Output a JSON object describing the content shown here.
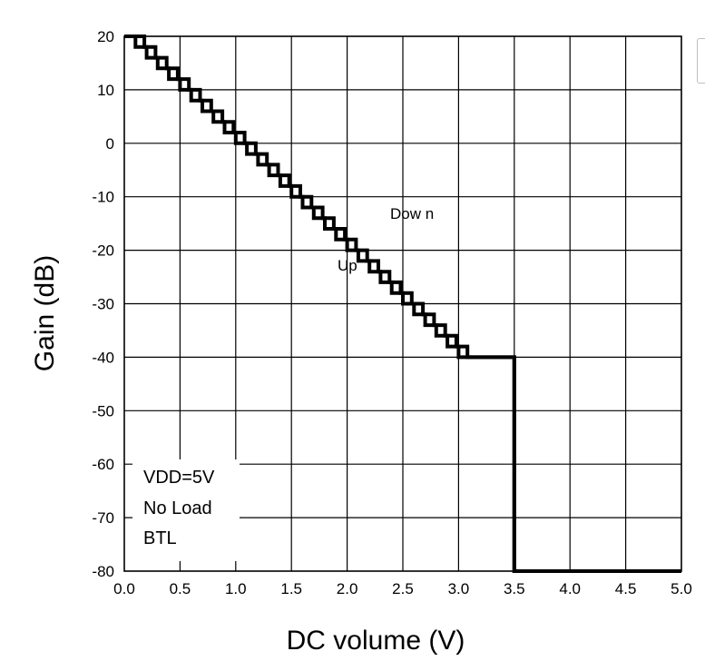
{
  "chart_data": {
    "type": "line",
    "xlabel": "DC volume (V)",
    "ylabel": "Gain (dB)",
    "xlim": [
      0.0,
      5.0
    ],
    "ylim": [
      -80,
      20
    ],
    "x_ticks": [
      "0.0",
      "0.5",
      "1.0",
      "1.5",
      "2.0",
      "2.5",
      "3.0",
      "3.5",
      "4.0",
      "4.5",
      "5.0"
    ],
    "y_ticks": [
      "20",
      "10",
      "0",
      "-10",
      "-20",
      "-30",
      "-40",
      "-50",
      "-60",
      "-70",
      "-80"
    ],
    "grid": true,
    "annotations": {
      "down": "Dow n",
      "up": "Up"
    },
    "conditions": [
      "VDD=5V",
      "No Load",
      "BTL"
    ],
    "series": [
      {
        "name": "Down",
        "x": [
          0.0,
          0.18,
          0.18,
          0.28,
          0.28,
          0.38,
          0.38,
          0.48,
          0.48,
          0.58,
          0.58,
          0.68,
          0.68,
          0.78,
          0.78,
          0.88,
          0.88,
          0.98,
          0.98,
          1.08,
          1.08,
          1.18,
          1.18,
          1.28,
          1.28,
          1.38,
          1.38,
          1.48,
          1.48,
          1.58,
          1.58,
          1.68,
          1.68,
          1.78,
          1.78,
          1.88,
          1.88,
          1.98,
          1.98,
          2.08,
          2.08,
          2.18,
          2.18,
          2.28,
          2.28,
          2.38,
          2.38,
          2.48,
          2.48,
          2.58,
          2.58,
          2.68,
          2.68,
          2.78,
          2.78,
          2.88,
          2.88,
          2.98,
          2.98,
          3.08,
          3.08,
          3.18,
          3.18,
          3.28,
          3.28,
          3.38,
          3.38,
          3.5,
          3.5,
          5.0
        ],
        "y": [
          20,
          20,
          18,
          18,
          16,
          16,
          14,
          14,
          12,
          12,
          10,
          10,
          8,
          8,
          6,
          6,
          4,
          4,
          2,
          2,
          0,
          0,
          -2,
          -2,
          -4,
          -4,
          -6,
          -6,
          -8,
          -8,
          -10,
          -10,
          -12,
          -12,
          -14,
          -14,
          -16,
          -16,
          -18,
          -18,
          -20,
          -20,
          -22,
          -22,
          -24,
          -24,
          -26,
          -26,
          -28,
          -28,
          -30,
          -30,
          -32,
          -32,
          -34,
          -34,
          -36,
          -36,
          -38,
          -38,
          -40,
          -40,
          -40,
          -40,
          -40,
          -40,
          -40,
          -40,
          -80,
          -80
        ]
      },
      {
        "name": "Up",
        "x": [
          0.0,
          0.1,
          0.1,
          0.2,
          0.2,
          0.3,
          0.3,
          0.4,
          0.4,
          0.5,
          0.5,
          0.6,
          0.6,
          0.7,
          0.7,
          0.8,
          0.8,
          0.9,
          0.9,
          1.0,
          1.0,
          1.1,
          1.1,
          1.2,
          1.2,
          1.3,
          1.3,
          1.4,
          1.4,
          1.5,
          1.5,
          1.6,
          1.6,
          1.7,
          1.7,
          1.8,
          1.8,
          1.9,
          1.9,
          2.0,
          2.0,
          2.1,
          2.1,
          2.2,
          2.2,
          2.3,
          2.3,
          2.4,
          2.4,
          2.5,
          2.5,
          2.6,
          2.6,
          2.7,
          2.7,
          2.8,
          2.8,
          2.9,
          2.9,
          3.0,
          3.0,
          3.1,
          3.1,
          3.2,
          3.2,
          3.3,
          3.3,
          3.4,
          3.4,
          3.5,
          3.5,
          5.0
        ],
        "y": [
          20,
          20,
          18,
          18,
          16,
          16,
          14,
          14,
          12,
          12,
          10,
          10,
          8,
          8,
          6,
          6,
          4,
          4,
          2,
          2,
          0,
          0,
          -2,
          -2,
          -4,
          -4,
          -6,
          -6,
          -8,
          -8,
          -10,
          -10,
          -12,
          -12,
          -14,
          -14,
          -16,
          -16,
          -18,
          -18,
          -20,
          -20,
          -22,
          -22,
          -24,
          -24,
          -26,
          -26,
          -28,
          -28,
          -30,
          -30,
          -32,
          -32,
          -34,
          -34,
          -36,
          -36,
          -38,
          -38,
          -40,
          -40,
          -40,
          -40,
          -40,
          -40,
          -40,
          -40,
          -40,
          -40,
          -80,
          -80
        ]
      }
    ]
  }
}
